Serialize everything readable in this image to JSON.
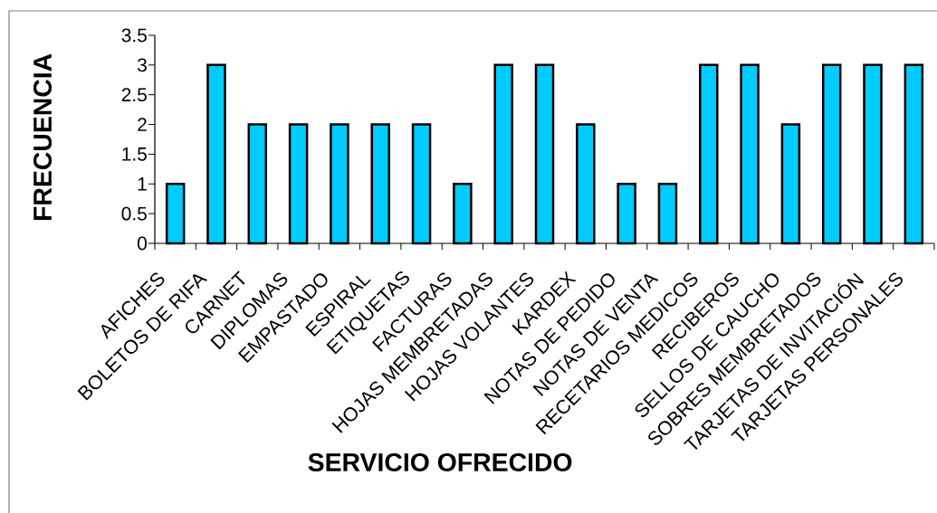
{
  "chart_data": {
    "type": "bar",
    "xlabel": "SERVICIO OFRECIDO",
    "ylabel": "FRECUENCIA",
    "categories": [
      "AFICHES",
      "BOLETOS DE RIFA",
      "CARNET",
      "DIPLOMAS",
      "EMPASTADO",
      "ESPIRAL",
      "ETIQUETAS",
      "FACTURAS",
      "HOJAS MEMBRETADAS",
      "HOJAS VOLANTES",
      "KARDEX",
      "NOTAS DE PEDIDO",
      "NOTAS DE VENTA",
      "RECETARIOS MEDICOS",
      "RECIBEROS",
      "SELLOS DE CAUCHO",
      "SOBRES MEMBRETADOS",
      "TARJETAS DE INVITACIÓN",
      "TARJETAS PERSONALES"
    ],
    "values": [
      1,
      3,
      2,
      2,
      2,
      2,
      2,
      1,
      3,
      3,
      2,
      1,
      1,
      3,
      3,
      2,
      3,
      3,
      3
    ],
    "color": "#00ccff",
    "ylim": [
      0,
      3.5
    ],
    "yticks": [
      0,
      0.5,
      1,
      1.5,
      2,
      2.5,
      3,
      3.5
    ]
  }
}
